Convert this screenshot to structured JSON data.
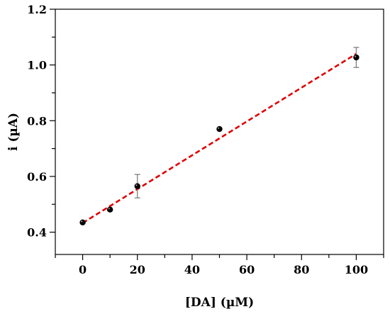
{
  "chart_data": {
    "type": "scatter",
    "xlabel": "[DA] (µM)",
    "ylabel": "i (µA)",
    "xlim": [
      -10,
      110
    ],
    "ylim": [
      0.32,
      1.2
    ],
    "xticks": [
      0,
      20,
      40,
      60,
      80,
      100
    ],
    "yticks": [
      0.4,
      0.6,
      0.8,
      1.0,
      1.2
    ],
    "x_tick_labels": [
      "0",
      "20",
      "40",
      "60",
      "80",
      "100"
    ],
    "y_tick_labels": [
      "0.4",
      "0.6",
      "0.8",
      "1.0",
      "1.2"
    ],
    "grid": false,
    "points": [
      {
        "x": 0,
        "y": 0.435,
        "err": 0.0
      },
      {
        "x": 10,
        "y": 0.481,
        "err": 0.0
      },
      {
        "x": 20,
        "y": 0.565,
        "err": 0.042
      },
      {
        "x": 50,
        "y": 0.77,
        "err": 0.0
      },
      {
        "x": 100,
        "y": 1.027,
        "err": 0.036
      }
    ],
    "fit_line": {
      "x": [
        0,
        100
      ],
      "y": [
        0.433,
        1.04
      ],
      "color": "#e00000",
      "style": "dashed"
    },
    "marker_color": "#000000",
    "errorbar_color": "#7f7f7f"
  }
}
